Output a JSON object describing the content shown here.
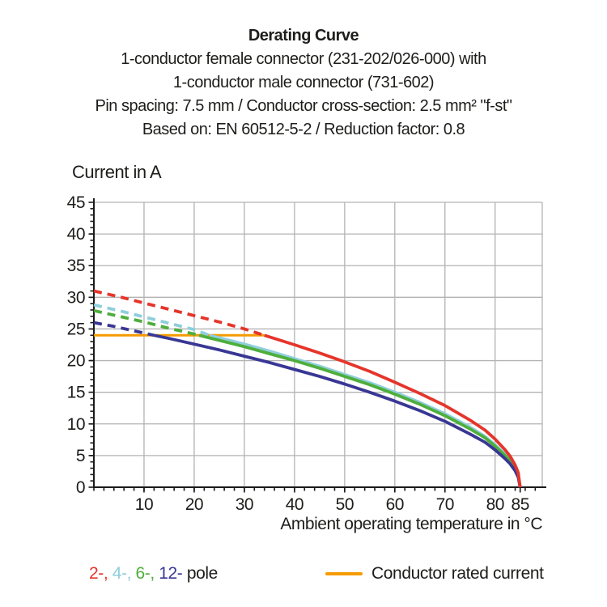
{
  "header": {
    "title": "Derating Curve",
    "subtitle_lines": [
      "1-conductor female connector (231-202/026-000) with",
      "1-conductor male connector (731-602)",
      "Pin spacing: 7.5 mm / Conductor cross-section: 2.5 mm² \"f-st\"",
      "Based on: EN 60512-5-2 / Reduction factor: 0.8"
    ]
  },
  "axes": {
    "y_title": "Current in A",
    "x_title": "Ambient operating temperature in °C"
  },
  "legend": {
    "pole_items": [
      {
        "label": "2-,",
        "color": "#e5352b"
      },
      {
        "label": "4-,",
        "color": "#8fcedb"
      },
      {
        "label": "6-,",
        "color": "#4eae3c"
      },
      {
        "label": "12-",
        "color": "#393794"
      }
    ],
    "pole_suffix": "pole",
    "rated": {
      "label": "Conductor rated current",
      "color": "#f59b00"
    }
  },
  "chart_data": {
    "type": "line",
    "title": "Derating Curve",
    "xlabel": "Ambient operating temperature in °C",
    "ylabel": "Current in A",
    "xlim": [
      0,
      89.4
    ],
    "ylim": [
      0,
      45
    ],
    "x_ticks": [
      10,
      20,
      30,
      40,
      50,
      60,
      70,
      80,
      85
    ],
    "x_gridlines": [
      10,
      20,
      30,
      40,
      50,
      60,
      70,
      80
    ],
    "x_minor": {
      "start": 0,
      "end": 88,
      "step": 2
    },
    "y_ticks": [
      0,
      5,
      10,
      15,
      20,
      25,
      30,
      35,
      40,
      45
    ],
    "y_gridlines": [
      5,
      10,
      15,
      20,
      25,
      30,
      35,
      40,
      45
    ],
    "y_minor": {
      "start": 1,
      "end": 44,
      "step": 1
    },
    "grid": true,
    "grid_color": "#b3b3b3",
    "axis_color": "#1a1a1a",
    "legend_position": "bottom",
    "series": [
      {
        "name": "2-pole",
        "color": "#e5352b",
        "width": 3.8,
        "dashed_until": 34,
        "points": [
          [
            0,
            31
          ],
          [
            5,
            30.1
          ],
          [
            10,
            29.1
          ],
          [
            15,
            28.1
          ],
          [
            20,
            27.1
          ],
          [
            25,
            26.1
          ],
          [
            30,
            25
          ],
          [
            34,
            24
          ],
          [
            40,
            22.5
          ],
          [
            45,
            21.2
          ],
          [
            50,
            19.8
          ],
          [
            55,
            18.3
          ],
          [
            60,
            16.6
          ],
          [
            65,
            14.8
          ],
          [
            70,
            12.9
          ],
          [
            75,
            10.6
          ],
          [
            78,
            9
          ],
          [
            80,
            7.6
          ],
          [
            82,
            5.9
          ],
          [
            83,
            4.9
          ],
          [
            84,
            3.5
          ],
          [
            84.6,
            2.3
          ],
          [
            85,
            0
          ]
        ]
      },
      {
        "name": "4-pole",
        "color": "#8fcedb",
        "width": 3.8,
        "dashed_until": 23,
        "points": [
          [
            0,
            28.8
          ],
          [
            5,
            27.9
          ],
          [
            10,
            26.9
          ],
          [
            15,
            25.9
          ],
          [
            20,
            24.9
          ],
          [
            23,
            24
          ],
          [
            25,
            23.6
          ],
          [
            30,
            22.6
          ],
          [
            35,
            21.5
          ],
          [
            40,
            20.3
          ],
          [
            45,
            19.1
          ],
          [
            50,
            17.8
          ],
          [
            55,
            16.5
          ],
          [
            60,
            15
          ],
          [
            65,
            13.4
          ],
          [
            70,
            11.6
          ],
          [
            75,
            9.5
          ],
          [
            78,
            8
          ],
          [
            80,
            6.7
          ],
          [
            82,
            5.2
          ],
          [
            83,
            4.3
          ],
          [
            84,
            3
          ],
          [
            84.6,
            2
          ],
          [
            85,
            0
          ]
        ]
      },
      {
        "name": "6-pole",
        "color": "#4eae3c",
        "width": 3.8,
        "dashed_until": 21,
        "points": [
          [
            0,
            27.9
          ],
          [
            5,
            27
          ],
          [
            10,
            26.1
          ],
          [
            15,
            25.1
          ],
          [
            20,
            24.2
          ],
          [
            21,
            24
          ],
          [
            25,
            23.2
          ],
          [
            30,
            22.2
          ],
          [
            35,
            21.1
          ],
          [
            40,
            20
          ],
          [
            45,
            18.8
          ],
          [
            50,
            17.5
          ],
          [
            55,
            16.2
          ],
          [
            60,
            14.7
          ],
          [
            65,
            13.1
          ],
          [
            70,
            11.3
          ],
          [
            75,
            9.2
          ],
          [
            78,
            7.8
          ],
          [
            80,
            6.5
          ],
          [
            82,
            5
          ],
          [
            83,
            4.1
          ],
          [
            84,
            2.9
          ],
          [
            84.6,
            1.9
          ],
          [
            85,
            0
          ]
        ]
      },
      {
        "name": "12-pole",
        "color": "#393794",
        "width": 3.8,
        "dashed_until": 12,
        "points": [
          [
            0,
            26
          ],
          [
            4,
            25.4
          ],
          [
            8,
            24.7
          ],
          [
            12,
            24
          ],
          [
            15,
            23.5
          ],
          [
            20,
            22.6
          ],
          [
            25,
            21.7
          ],
          [
            30,
            20.7
          ],
          [
            35,
            19.7
          ],
          [
            40,
            18.6
          ],
          [
            45,
            17.5
          ],
          [
            50,
            16.3
          ],
          [
            55,
            15
          ],
          [
            60,
            13.6
          ],
          [
            65,
            12.1
          ],
          [
            70,
            10.4
          ],
          [
            75,
            8.4
          ],
          [
            78,
            7.1
          ],
          [
            80,
            5.9
          ],
          [
            82,
            4.5
          ],
          [
            83,
            3.7
          ],
          [
            84,
            2.6
          ],
          [
            84.6,
            1.6
          ],
          [
            85,
            0
          ]
        ]
      },
      {
        "name": "Conductor rated current",
        "color": "#f59b00",
        "width": 3,
        "dashed_until": null,
        "points": [
          [
            0,
            24
          ],
          [
            34,
            24
          ]
        ]
      }
    ]
  }
}
